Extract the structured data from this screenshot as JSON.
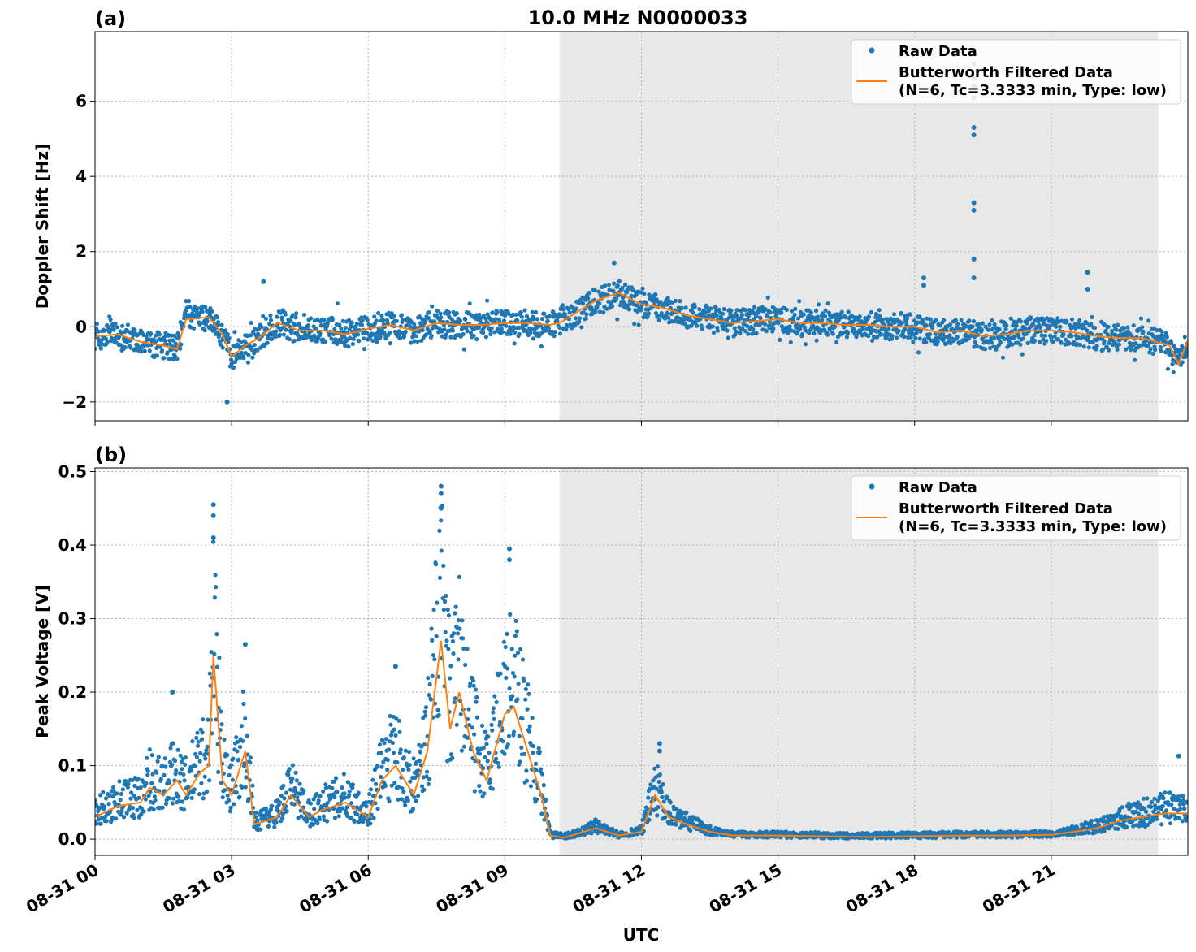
{
  "figure": {
    "title": "10.0 MHz N0000033",
    "xlabel": "UTC"
  },
  "colors": {
    "raw": "#1f77b4",
    "filtered": "#ff7f0e",
    "shade": "#e8e8e8",
    "grid": "#b0b0b0"
  },
  "chart_data": [
    {
      "type": "scatter",
      "panel_label": "(a)",
      "ylabel": "Doppler Shift [Hz]",
      "xlim": [
        0,
        24
      ],
      "ylim": [
        -2.5,
        7.85
      ],
      "y_ticks": [
        -2,
        0,
        2,
        4,
        6
      ],
      "y_tick_labels": [
        "−2",
        "0",
        "2",
        "4",
        "6"
      ],
      "x_ticks": [
        0,
        3,
        6,
        9,
        12,
        15,
        18,
        21
      ],
      "x_tick_labels": [
        "08-31 00",
        "08-31 03",
        "08-31 06",
        "08-31 09",
        "08-31 12",
        "08-31 15",
        "08-31 18",
        "08-31 21"
      ],
      "shaded_span": [
        10.2,
        23.35
      ],
      "grid": true,
      "legend": {
        "placement": "top-right",
        "raw_label": "Raw Data",
        "filtered_label_line1": "Butterworth Filtered Data",
        "filtered_label_line2": "(N=6, Tc=3.3333 min, Type: low)"
      },
      "series": [
        {
          "name": "Butterworth Filtered Data",
          "x": [
            0,
            0.5,
            1.0,
            1.5,
            1.8,
            2.0,
            2.5,
            2.8,
            3.0,
            3.3,
            3.6,
            4.0,
            4.5,
            5.0,
            5.5,
            6.0,
            6.5,
            7.0,
            7.5,
            8.0,
            8.5,
            9.0,
            9.5,
            10.0,
            10.2,
            10.6,
            11.0,
            11.5,
            12.0,
            12.5,
            13.0,
            13.5,
            14.0,
            14.5,
            15.0,
            15.5,
            16.0,
            16.5,
            17.0,
            17.5,
            18.0,
            18.5,
            19.0,
            19.5,
            20.0,
            20.5,
            21.0,
            21.5,
            22.0,
            22.5,
            23.0,
            23.3,
            23.6,
            23.8,
            24.0
          ],
          "y": [
            -0.25,
            -0.2,
            -0.4,
            -0.5,
            -0.6,
            0.2,
            0.25,
            -0.2,
            -0.8,
            -0.5,
            -0.3,
            0.1,
            -0.1,
            -0.1,
            -0.2,
            -0.05,
            0.05,
            -0.1,
            0.1,
            0.05,
            0.05,
            0.1,
            0.1,
            0.05,
            0.1,
            0.4,
            0.7,
            0.9,
            0.6,
            0.5,
            0.3,
            0.2,
            0.1,
            0.15,
            0.2,
            0.1,
            0.1,
            0.05,
            0.05,
            0.0,
            0.0,
            -0.15,
            -0.1,
            -0.25,
            -0.2,
            -0.1,
            -0.1,
            -0.15,
            -0.25,
            -0.3,
            -0.3,
            -0.4,
            -0.5,
            -1.0,
            -0.35
          ]
        },
        {
          "name": "Raw Data",
          "outliers_x": [
            3.7,
            18.2,
            18.2,
            19.3,
            19.3,
            19.3,
            19.3,
            19.3,
            19.3,
            19.3,
            19.3,
            19.3,
            19.3,
            21.8,
            21.8,
            11.4,
            2.9
          ],
          "outliers_y": [
            1.2,
            1.3,
            1.1,
            7.0,
            6.6,
            6.4,
            6.1,
            5.3,
            5.1,
            3.3,
            3.1,
            1.8,
            1.3,
            1.45,
            1.0,
            1.7,
            -2.0
          ]
        }
      ]
    },
    {
      "type": "scatter",
      "panel_label": "(b)",
      "ylabel": "Peak Voltage [V]",
      "xlim": [
        0,
        24
      ],
      "ylim": [
        -0.022,
        0.505
      ],
      "y_ticks": [
        0.0,
        0.1,
        0.2,
        0.3,
        0.4,
        0.5
      ],
      "y_tick_labels": [
        "0.0",
        "0.1",
        "0.2",
        "0.3",
        "0.4",
        "0.5"
      ],
      "x_ticks": [
        0,
        3,
        6,
        9,
        12,
        15,
        18,
        21
      ],
      "x_tick_labels": [
        "08-31 00",
        "08-31 03",
        "08-31 06",
        "08-31 09",
        "08-31 12",
        "08-31 15",
        "08-31 18",
        "08-31 21"
      ],
      "shaded_span": [
        10.2,
        23.35
      ],
      "grid": true,
      "legend": {
        "placement": "top-right",
        "raw_label": "Raw Data",
        "filtered_label_line1": "Butterworth Filtered Data",
        "filtered_label_line2": "(N=6, Tc=3.3333 min, Type: low)"
      },
      "series": [
        {
          "name": "Butterworth Filtered Data",
          "x": [
            0,
            0.5,
            1.0,
            1.2,
            1.5,
            1.8,
            2.0,
            2.3,
            2.5,
            2.6,
            2.8,
            3.0,
            3.3,
            3.5,
            4.0,
            4.3,
            4.7,
            5.0,
            5.5,
            6.0,
            6.3,
            6.6,
            7.0,
            7.3,
            7.6,
            7.8,
            8.0,
            8.3,
            8.6,
            9.0,
            9.2,
            9.5,
            9.8,
            10.0,
            10.3,
            11.0,
            11.5,
            12.0,
            12.3,
            12.6,
            13.0,
            13.5,
            14.0,
            15.0,
            16.0,
            17.0,
            18.0,
            19.0,
            20.0,
            21.0,
            21.5,
            22.0,
            22.5,
            23.0,
            23.5,
            24.0
          ],
          "y": [
            0.03,
            0.045,
            0.05,
            0.07,
            0.06,
            0.08,
            0.06,
            0.09,
            0.1,
            0.25,
            0.08,
            0.06,
            0.12,
            0.02,
            0.03,
            0.06,
            0.03,
            0.04,
            0.05,
            0.03,
            0.08,
            0.1,
            0.06,
            0.12,
            0.27,
            0.15,
            0.2,
            0.12,
            0.08,
            0.17,
            0.18,
            0.12,
            0.06,
            0.005,
            0.002,
            0.015,
            0.005,
            0.01,
            0.06,
            0.03,
            0.02,
            0.01,
            0.005,
            0.005,
            0.004,
            0.003,
            0.004,
            0.005,
            0.005,
            0.006,
            0.01,
            0.015,
            0.025,
            0.03,
            0.035,
            0.035
          ]
        },
        {
          "name": "Raw Data",
          "outliers_x": [
            2.6,
            2.6,
            2.6,
            7.6,
            7.6,
            7.6,
            9.1,
            9.1,
            12.4,
            12.4,
            3.3,
            6.6,
            1.7,
            23.8
          ],
          "outliers_y": [
            0.455,
            0.44,
            0.41,
            0.48,
            0.47,
            0.45,
            0.395,
            0.38,
            0.13,
            0.12,
            0.265,
            0.235,
            0.2,
            0.113
          ]
        }
      ]
    }
  ]
}
